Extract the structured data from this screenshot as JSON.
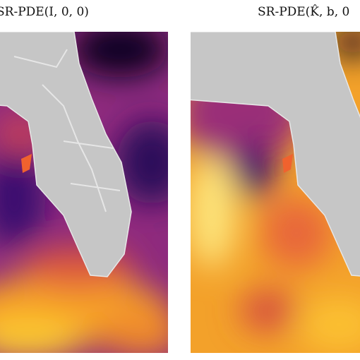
{
  "panels": [
    {
      "title": "SR-PDE(I, 0, 0)"
    },
    {
      "title": "SR-PDE(K̂, b, 0"
    }
  ]
}
